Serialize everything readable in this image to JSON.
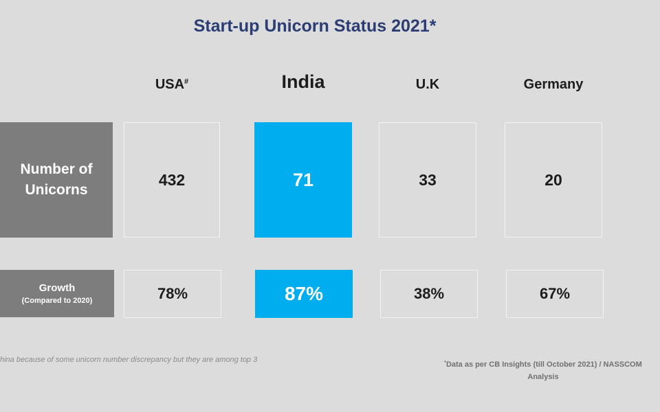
{
  "chart_data": {
    "type": "table",
    "title": "Start-up Unicorn Status 2021*",
    "columns": [
      {
        "name": "USA",
        "mark": "#",
        "highlight": false
      },
      {
        "name": "India",
        "mark": "",
        "highlight": true
      },
      {
        "name": "U.K",
        "mark": "",
        "highlight": false
      },
      {
        "name": "Germany",
        "mark": "",
        "highlight": false
      }
    ],
    "rows": [
      {
        "label_lines": [
          "Number of",
          "Unicorns"
        ],
        "sublabel": "",
        "values": [
          "432",
          "71",
          "33",
          "20"
        ]
      },
      {
        "label_lines": [
          "Growth"
        ],
        "sublabel": "(Compared to 2020)",
        "values": [
          "78%",
          "87%",
          "38%",
          "67%"
        ]
      }
    ],
    "footnotes": {
      "left": "hina because of some unicorn number discrepancy but they are among top 3",
      "right_mark": "*",
      "right_line1": "Data as per CB Insights (till October 2021) / NASSCOM",
      "right_line2": "Analysis"
    },
    "colors": {
      "background": "#dcdcdc",
      "title": "#2b3d73",
      "label_box": "#7d7d7d",
      "highlight": "#00aeef"
    }
  }
}
